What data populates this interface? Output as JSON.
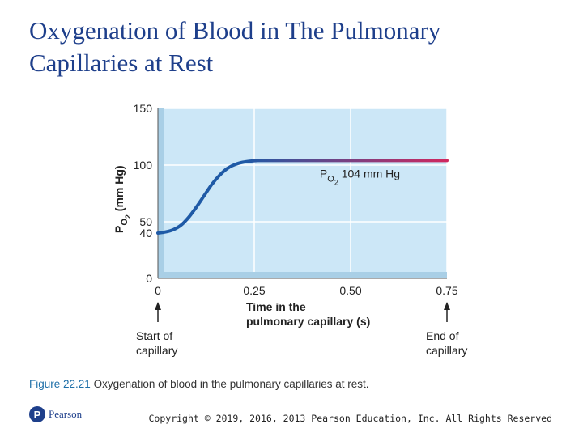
{
  "slide": {
    "title_line1": "Oxygenation of Blood in The Pulmonary",
    "title_line2": "Capillaries at Rest"
  },
  "caption": {
    "figure_label": "Figure 22.21",
    "text": "Oxygenation of blood in the pulmonary capillaries at rest."
  },
  "footer": {
    "logo_text": "Pearson",
    "logo_letter": "P",
    "copyright": "Copyright © 2019, 2016, 2013 Pearson Education, Inc. All Rights Reserved"
  },
  "colors": {
    "plot_bg": "#cce7f7",
    "shadow": "#a9cfe6",
    "grid": "#ffffff",
    "curve_start": "#1f5aa6",
    "curve_end": "#d0285f",
    "title": "#1e3f8b"
  },
  "chart_data": {
    "type": "line",
    "title": "",
    "xlabel_lines": [
      "Time in the",
      "pulmonary capillary (s)"
    ],
    "ylabel_main": "P",
    "ylabel_sub": "O",
    "ylabel_subsub": "2",
    "ylabel_units": " (mm Hg)",
    "xlim": [
      0,
      0.75
    ],
    "ylim": [
      0,
      150
    ],
    "x_ticks": [
      0,
      0.25,
      0.5,
      0.75
    ],
    "x_tick_labels": [
      "0",
      "0.25",
      "0.50",
      "0.75"
    ],
    "y_ticks": [
      0,
      40,
      50,
      100,
      150
    ],
    "y_tick_labels": [
      "0",
      "40",
      "50",
      "100",
      "150"
    ],
    "grid_x": [
      0.25,
      0.5,
      0.75
    ],
    "grid_y": [
      50,
      100,
      150
    ],
    "series": [
      {
        "name": "Blood PO2",
        "x": [
          0,
          0.02,
          0.04,
          0.06,
          0.08,
          0.1,
          0.12,
          0.14,
          0.16,
          0.18,
          0.2,
          0.22,
          0.24,
          0.26,
          0.3,
          0.35,
          0.5,
          0.75
        ],
        "y": [
          40,
          41,
          43,
          47,
          54,
          63,
          73,
          83,
          91,
          97,
          100.5,
          102.5,
          103.5,
          104,
          104,
          104,
          104,
          104
        ]
      }
    ],
    "annotation": {
      "main": "P",
      "sub": "O",
      "subsub": "2",
      "value": "104 mm Hg",
      "x": 0.42,
      "y": 89
    },
    "markers": [
      {
        "x": 0,
        "lines": [
          "Start of",
          "capillary"
        ]
      },
      {
        "x": 0.75,
        "lines": [
          "End of",
          "capillary"
        ]
      }
    ]
  }
}
